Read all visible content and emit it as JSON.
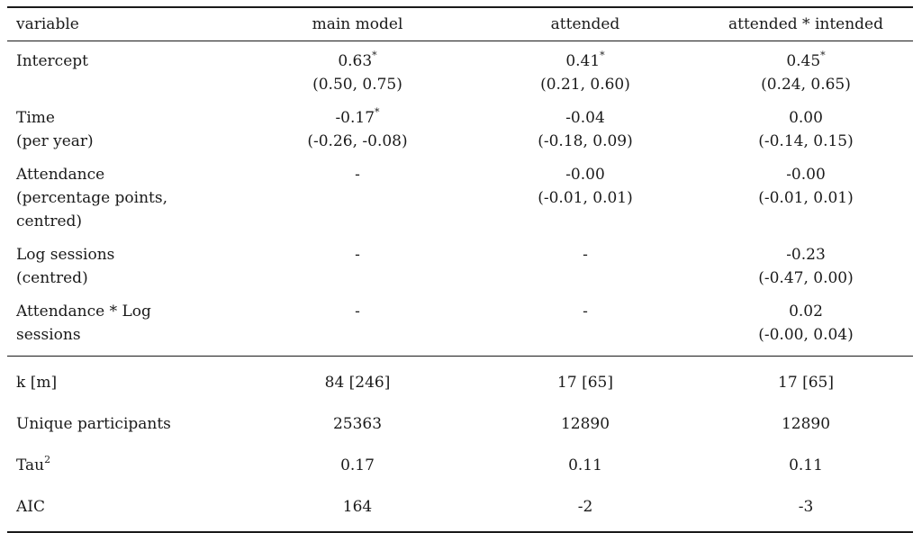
{
  "table": {
    "header": {
      "variable": "variable",
      "col1": "main model",
      "col2": "attended",
      "col3": "attended * intended"
    },
    "rows": [
      {
        "label": [
          "Intercept"
        ],
        "col1": [
          "0.63",
          "(0.50, 0.75)"
        ],
        "col1_sig": "*",
        "col2": [
          "0.41",
          "(0.21, 0.60)"
        ],
        "col2_sig": "*",
        "col3": [
          "0.45",
          "(0.24, 0.65)"
        ],
        "col3_sig": "*"
      },
      {
        "label": [
          "Time",
          "(per year)"
        ],
        "col1": [
          "-0.17",
          "(-0.26, -0.08)"
        ],
        "col1_sig": "*",
        "col2": [
          "-0.04",
          "(-0.18, 0.09)"
        ],
        "col2_sig": "",
        "col3": [
          "0.00",
          "(-0.14, 0.15)"
        ],
        "col3_sig": ""
      },
      {
        "label": [
          "Attendance",
          "(percentage points,",
          "centred)"
        ],
        "col1": [
          "-",
          ""
        ],
        "col1_sig": "",
        "col2": [
          "-0.00",
          "(-0.01, 0.01)"
        ],
        "col2_sig": "",
        "col3": [
          "-0.00",
          "(-0.01, 0.01)"
        ],
        "col3_sig": ""
      },
      {
        "label": [
          "Log sessions",
          "(centred)"
        ],
        "col1": [
          "-",
          ""
        ],
        "col1_sig": "",
        "col2": [
          "-",
          ""
        ],
        "col2_sig": "",
        "col3": [
          "-0.23",
          "(-0.47, 0.00)"
        ],
        "col3_sig": ""
      },
      {
        "label": [
          "Attendance * Log",
          "sessions"
        ],
        "col1": [
          "-",
          ""
        ],
        "col1_sig": "",
        "col2": [
          "-",
          ""
        ],
        "col2_sig": "",
        "col3": [
          "0.02",
          "(-0.00, 0.04)"
        ],
        "col3_sig": ""
      }
    ],
    "stats": [
      {
        "label": "k [m]",
        "label_sup": "",
        "col1": "84 [246]",
        "col2": "17 [65]",
        "col3": "17 [65]"
      },
      {
        "label": "Unique participants",
        "label_sup": "",
        "col1": "25363",
        "col2": "12890",
        "col3": "12890"
      },
      {
        "label": "Tau",
        "label_sup": "2",
        "col1": "0.17",
        "col2": "0.11",
        "col3": "0.11"
      },
      {
        "label": "AIC",
        "label_sup": "",
        "col1": "164",
        "col2": "-2",
        "col3": "-3"
      }
    ]
  }
}
